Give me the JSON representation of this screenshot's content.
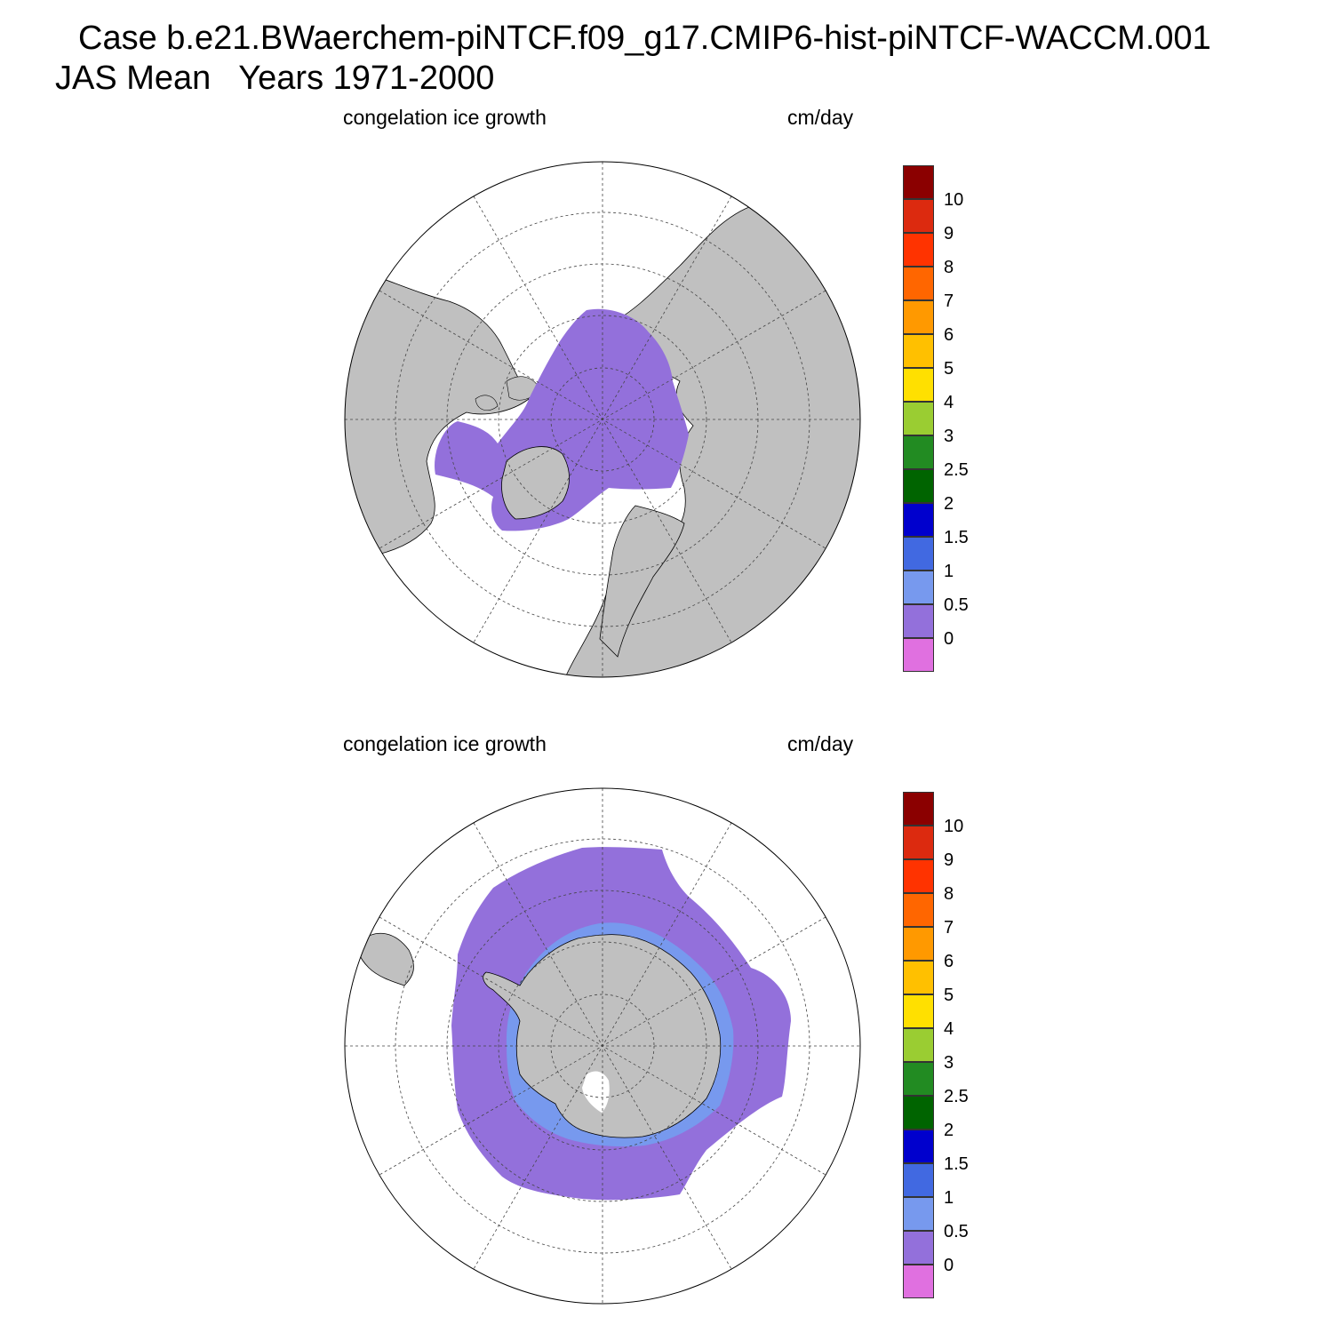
{
  "title": {
    "line1": "Case b.e21.BWaerchem-piNTCF.f09_g17.CMIP6-hist-piNTCF-WACCM.001",
    "line2": "JAS Mean   Years 1971-2000"
  },
  "panels": [
    {
      "id": "north",
      "left_label": "congelation ice growth",
      "right_label": "cm/day",
      "hemisphere": "north",
      "field_color": "#9370db"
    },
    {
      "id": "south",
      "left_label": "congelation ice growth",
      "right_label": "cm/day",
      "hemisphere": "south",
      "field_color": "#9370db"
    }
  ],
  "colorbar": {
    "labels": [
      "10",
      "9",
      "8",
      "7",
      "6",
      "5",
      "4",
      "3",
      "2.5",
      "2",
      "1.5",
      "1",
      "0.5",
      "0"
    ],
    "colors": [
      "#8b0000",
      "#dc2a0f",
      "#ff3300",
      "#ff6600",
      "#ff9900",
      "#ffc000",
      "#ffe000",
      "#9acd32",
      "#228b22",
      "#006400",
      "#0000cd",
      "#4169e1",
      "#7799ee",
      "#9370db",
      "#e070e0"
    ]
  },
  "colors": {
    "land": "#c0c0c0",
    "ocean": "#ffffff",
    "ice_growth": "#9370db",
    "coast_high": "#7799ee"
  }
}
